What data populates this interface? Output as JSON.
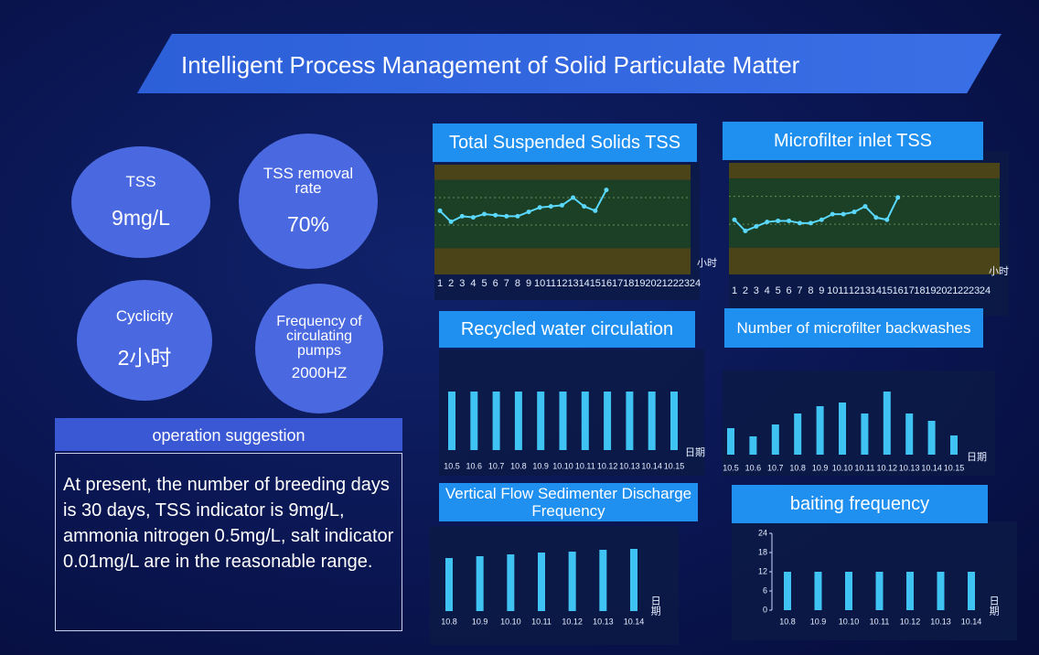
{
  "header": {
    "title": "Intelligent Process Management of Solid Particulate Matter"
  },
  "metrics": [
    {
      "label": "TSS",
      "value": "9mg/L"
    },
    {
      "label": "TSS removal rate",
      "value": "70%"
    },
    {
      "label": "Cyclicity",
      "value": "2小时"
    },
    {
      "label": "Frequency of circulating pumps",
      "value": "2000HZ"
    }
  ],
  "suggestion": {
    "title": "operation suggestion",
    "text": "At present, the number of breeding days is 30 days, TSS indicator is 9mg/L, ammonia nitrogen 0.5mg/L, salt indicator 0.01mg/L are in the reasonable range."
  },
  "chart_data": [
    {
      "type": "line",
      "title": "Total Suspended Solids TSS",
      "x_unit": "小时",
      "color": "#5ad8ff",
      "categories": [
        "1",
        "2",
        "3",
        "4",
        "5",
        "6",
        "7",
        "8",
        "9",
        "10",
        "11",
        "12",
        "13",
        "14",
        "15",
        "16",
        "17",
        "18",
        "19",
        "20",
        "21",
        "22",
        "23",
        "24"
      ],
      "values": [
        5.8,
        4.8,
        5.3,
        5.2,
        5.5,
        5.4,
        5.3,
        5.3,
        5.7,
        6.1,
        6.2,
        6.3,
        7.0,
        6.2,
        5.8,
        7.7,
        null,
        null,
        null,
        null,
        null,
        null,
        null,
        null
      ],
      "ylim": [
        0,
        10
      ]
    },
    {
      "type": "line",
      "title": "Microfilter inlet TSS",
      "x_unit": "小时",
      "color": "#5ad8ff",
      "categories": [
        "1",
        "2",
        "3",
        "4",
        "5",
        "6",
        "7",
        "8",
        "9",
        "10",
        "11",
        "12",
        "13",
        "14",
        "15",
        "16",
        "17",
        "18",
        "19",
        "20",
        "21",
        "22",
        "23",
        "24"
      ],
      "values": [
        4.9,
        3.9,
        4.3,
        4.7,
        4.8,
        4.8,
        4.6,
        4.6,
        4.9,
        5.4,
        5.4,
        5.6,
        6.1,
        5.1,
        4.9,
        6.9,
        null,
        null,
        null,
        null,
        null,
        null,
        null,
        null
      ],
      "ylim": [
        0,
        10
      ]
    },
    {
      "type": "bar",
      "title": "Recycled water circulation",
      "x_unit": "日期",
      "color": "#3fc3f2",
      "categories": [
        "10.5",
        "10.6",
        "10.7",
        "10.8",
        "10.9",
        "10.10",
        "10.11",
        "10.12",
        "10.13",
        "10.14",
        "10.15"
      ],
      "values": [
        6.4,
        6.4,
        6.4,
        6.4,
        6.4,
        6.4,
        6.4,
        6.4,
        6.4,
        6.4,
        6.4
      ],
      "ylim": [
        0,
        10
      ]
    },
    {
      "type": "bar",
      "title": "Number of microfilter backwashes",
      "x_unit": "日期",
      "color": "#3fc3f2",
      "categories": [
        "10.5",
        "10.6",
        "10.7",
        "10.8",
        "10.9",
        "10.10",
        "10.11",
        "10.12",
        "10.13",
        "10.14",
        "10.15"
      ],
      "values": [
        29,
        20,
        33,
        45,
        53,
        57,
        45,
        69,
        45,
        37,
        21
      ],
      "ylim": [
        0,
        80
      ]
    },
    {
      "type": "bar",
      "title": "Vertical Flow Sedimenter Discharge Frequency",
      "x_unit": "日期",
      "color": "#3fc3f2",
      "categories": [
        "10.8",
        "10.9",
        "10.10",
        "10.11",
        "10.12",
        "10.13",
        "10.14"
      ],
      "values": [
        58,
        60,
        62,
        64,
        65,
        67,
        68
      ],
      "ylim": [
        0,
        80
      ]
    },
    {
      "type": "bar",
      "title": "baiting frequency",
      "x_unit": "日期",
      "color": "#3fc3f2",
      "categories": [
        "10.8",
        "10.9",
        "10.10",
        "10.11",
        "10.12",
        "10.13",
        "10.14"
      ],
      "values": [
        12,
        12,
        12,
        12,
        12,
        12,
        12
      ],
      "ylim": [
        0,
        24
      ],
      "yticks": [
        0,
        6,
        12,
        18,
        24
      ]
    }
  ]
}
